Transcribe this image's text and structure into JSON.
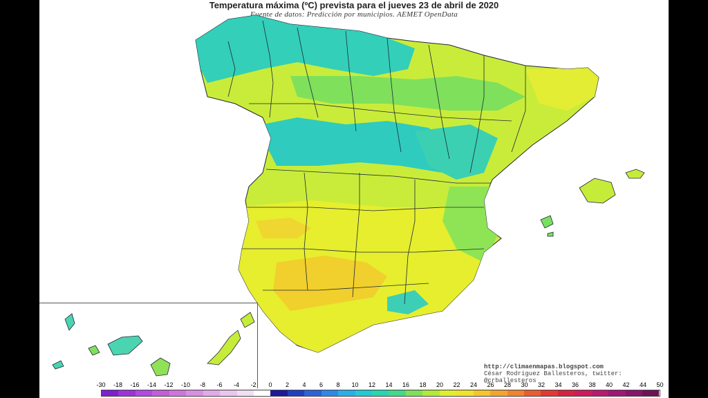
{
  "title": "Temperatura máxima (ºC) prevista para el jueves 23 de abril de 2020",
  "subtitle": "Fuente de datos: Predicción por municipios. AEMET OpenData",
  "credits": {
    "blog": "http://climaenmapas.blogspot.com",
    "author": "César Rodríguez Ballesteros, twitter: @crballesteros"
  },
  "legend": {
    "ticks": [
      "-30",
      "-18",
      "-16",
      "-14",
      "-12",
      "-10",
      "-8",
      "-6",
      "-4",
      "-2",
      "0",
      "2",
      "4",
      "6",
      "8",
      "10",
      "12",
      "14",
      "16",
      "18",
      "20",
      "22",
      "24",
      "26",
      "28",
      "30",
      "32",
      "34",
      "36",
      "38",
      "40",
      "42",
      "44",
      "50"
    ],
    "colors": [
      "#7f1fcf",
      "#9a34d8",
      "#b04ae0",
      "#c15ed8",
      "#cf74dc",
      "#d88fe2",
      "#e2aae8",
      "#eac6ee",
      "#f1def3",
      "#ffffff",
      "#1b1b9a",
      "#1f3fbe",
      "#2a63d8",
      "#2f88e6",
      "#2aaee8",
      "#23c9d4",
      "#29d4b0",
      "#42d98a",
      "#7fe05c",
      "#b2e93a",
      "#e0ef2c",
      "#f2e22a",
      "#f6c52a",
      "#f2a52c",
      "#ef842e",
      "#ea5c2e",
      "#e03a32",
      "#d52242",
      "#cc1b5c",
      "#b81970",
      "#9e1676",
      "#86146a",
      "#6e1256"
    ]
  },
  "colors": {
    "cool_teal": "#2fd0b8",
    "green": "#7fe05c",
    "yellow_green": "#c8ec3a",
    "yellow": "#e8ef30",
    "warm": "#f2d02e"
  }
}
